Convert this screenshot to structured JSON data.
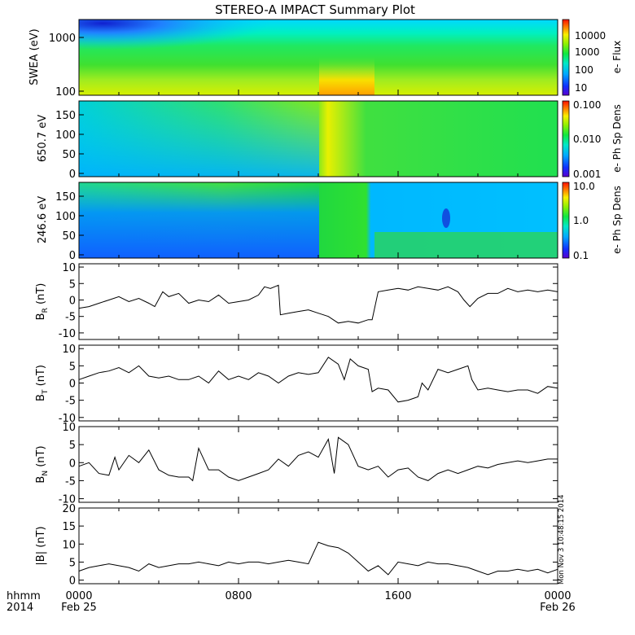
{
  "title": "STEREO-A IMPACT Summary Plot",
  "stamp": "Mon Nov 3 10:48:15 2014",
  "time_axis": {
    "row_label_1": "hhmm",
    "row_label_2": "2014",
    "ticks": [
      {
        "hhmm": "0000",
        "date": "Feb 25",
        "hours": 0
      },
      {
        "hhmm": "0800",
        "date": "",
        "hours": 8
      },
      {
        "hhmm": "1600",
        "date": "",
        "hours": 16
      },
      {
        "hhmm": "0000",
        "date": "Feb 26",
        "hours": 24
      }
    ]
  },
  "spectrogram_panels": [
    {
      "id": "swea",
      "ylabel": "SWEA (eV)",
      "yticks": [
        "1000",
        "100"
      ],
      "colorbar_label": "e- Flux",
      "colorbar_ticks": [
        "10000",
        "1000",
        "100",
        "10"
      ]
    },
    {
      "id": "pad650",
      "ylabel": "650.7 eV",
      "yticks": [
        "150",
        "100",
        "50",
        "0"
      ],
      "colorbar_label": "e- Ph Sp Dens",
      "colorbar_ticks": [
        "0.100",
        "0.010",
        "0.001"
      ]
    },
    {
      "id": "pad246",
      "ylabel": "246.6 eV",
      "yticks": [
        "150",
        "100",
        "50",
        "0"
      ],
      "colorbar_label": "e- Ph Sp Dens",
      "colorbar_ticks": [
        "10.0",
        "1.0",
        "0.1"
      ]
    }
  ],
  "chart_data": [
    {
      "type": "line",
      "id": "br",
      "ylabel_main": "B",
      "ylabel_sub": "R",
      "ylabel_unit": " (nT)",
      "ylim": [
        -12,
        11
      ],
      "yticks": [
        10,
        5,
        0,
        -5,
        -10
      ],
      "x_units": "hours since 2014-02-25 00:00",
      "xlim": [
        0,
        24
      ],
      "x": [
        0,
        0.5,
        1,
        1.5,
        2,
        2.5,
        3,
        3.5,
        3.8,
        4.2,
        4.5,
        5,
        5.5,
        6,
        6.5,
        7,
        7.5,
        8,
        8.5,
        9,
        9.3,
        9.6,
        10,
        10.1,
        10.5,
        11,
        11.5,
        12,
        12.5,
        13,
        13.5,
        14,
        14.5,
        14.7,
        15,
        15.5,
        16,
        16.5,
        17,
        17.5,
        18,
        18.5,
        19,
        19.3,
        19.6,
        20,
        20.5,
        21,
        21.5,
        22,
        22.5,
        23,
        23.5,
        24
      ],
      "y": [
        -2.5,
        -2,
        -1,
        0,
        1,
        -0.5,
        0.5,
        -1,
        -2,
        2.5,
        1,
        2,
        -1,
        0,
        -0.5,
        1.5,
        -1,
        -0.5,
        0,
        1.5,
        4,
        3.5,
        4.5,
        -4.5,
        -4,
        -3.5,
        -3,
        -4,
        -5,
        -7,
        -6.5,
        -7,
        -6,
        -6,
        2.5,
        3,
        3.5,
        3,
        4,
        3.5,
        3,
        4,
        2.5,
        0,
        -2,
        0.5,
        2,
        2,
        3.5,
        2.5,
        3,
        2.5,
        3,
        2.5
      ]
    },
    {
      "type": "line",
      "id": "bt",
      "ylabel_main": "B",
      "ylabel_sub": "T",
      "ylabel_unit": " (nT)",
      "ylim": [
        -11,
        11
      ],
      "yticks": [
        10,
        5,
        0,
        -5,
        -10
      ],
      "x_units": "hours since 2014-02-25 00:00",
      "xlim": [
        0,
        24
      ],
      "x": [
        0,
        0.5,
        1,
        1.5,
        2,
        2.5,
        3,
        3.5,
        4,
        4.5,
        5,
        5.5,
        6,
        6.5,
        7,
        7.5,
        8,
        8.5,
        9,
        9.5,
        10,
        10.5,
        11,
        11.5,
        12,
        12.5,
        13,
        13.3,
        13.6,
        14,
        14.5,
        14.7,
        15,
        15.5,
        16,
        16.5,
        17,
        17.2,
        17.5,
        18,
        18.5,
        19,
        19.5,
        19.7,
        20,
        20.5,
        21,
        21.5,
        22,
        22.5,
        23,
        23.5,
        24
      ],
      "y": [
        1,
        2,
        3,
        3.5,
        4.5,
        3,
        5,
        2,
        1.5,
        2,
        1,
        1,
        2,
        0,
        3.5,
        1,
        2,
        1,
        3,
        2,
        0,
        2,
        3,
        2.5,
        3,
        7.5,
        5.5,
        1,
        7,
        5,
        4,
        -2.5,
        -1.5,
        -2,
        -5.5,
        -5,
        -4,
        0,
        -2,
        4,
        3,
        4,
        5,
        1,
        -2,
        -1.5,
        -2,
        -2.5,
        -2,
        -2,
        -3,
        -1,
        -1.5
      ]
    },
    {
      "type": "line",
      "id": "bn",
      "ylabel_main": "B",
      "ylabel_sub": "N",
      "ylabel_unit": " (nT)",
      "ylim": [
        -11,
        10
      ],
      "yticks": [
        10,
        5,
        0,
        -5,
        -10
      ],
      "x_units": "hours since 2014-02-25 00:00",
      "xlim": [
        0,
        24
      ],
      "x": [
        0,
        0.5,
        1,
        1.5,
        1.8,
        2,
        2.5,
        3,
        3.5,
        4,
        4.5,
        5,
        5.5,
        5.7,
        6,
        6.5,
        7,
        7.5,
        8,
        8.5,
        9,
        9.5,
        10,
        10.5,
        11,
        11.5,
        12,
        12.5,
        12.8,
        13,
        13.5,
        14,
        14.5,
        15,
        15.5,
        16,
        16.5,
        17,
        17.5,
        18,
        18.5,
        19,
        19.5,
        20,
        20.5,
        21,
        21.5,
        22,
        22.5,
        23,
        23.5,
        24
      ],
      "y": [
        -1,
        0,
        -3,
        -3.5,
        1.5,
        -2,
        2,
        0,
        3.5,
        -2,
        -3.5,
        -4,
        -4,
        -5,
        4,
        -2,
        -2,
        -4,
        -5,
        -4,
        -3,
        -2,
        1,
        -1,
        2,
        3,
        1.5,
        6.5,
        -3,
        7,
        5,
        -1,
        -2,
        -1,
        -4,
        -2,
        -1.5,
        -4,
        -5,
        -3,
        -2,
        -3,
        -2,
        -1,
        -1.5,
        -0.5,
        0,
        0.5,
        0,
        0.5,
        1,
        1
      ]
    },
    {
      "type": "line",
      "id": "bmag",
      "ylabel_main": "|B|",
      "ylabel_sub": "",
      "ylabel_unit": " (nT)",
      "ylim": [
        -1,
        20
      ],
      "yticks": [
        20,
        15,
        10,
        5,
        0
      ],
      "x_units": "hours since 2014-02-25 00:00",
      "xlim": [
        0,
        24
      ],
      "x": [
        0,
        0.5,
        1,
        1.5,
        2,
        2.5,
        3,
        3.5,
        4,
        4.5,
        5,
        5.5,
        6,
        6.5,
        7,
        7.5,
        8,
        8.5,
        9,
        9.5,
        10,
        10.5,
        11,
        11.5,
        12,
        12.5,
        13,
        13.5,
        14,
        14.5,
        15,
        15.5,
        16,
        16.5,
        17,
        17.5,
        18,
        18.5,
        19,
        19.5,
        20,
        20.5,
        21,
        21.5,
        22,
        22.5,
        23,
        23.5,
        24
      ],
      "y": [
        2.5,
        3.5,
        4,
        4.5,
        4,
        3.5,
        2.5,
        4.5,
        3.5,
        4,
        4.5,
        4.5,
        5,
        4.5,
        4,
        5,
        4.5,
        5,
        5,
        4.5,
        5,
        5.5,
        5,
        4.5,
        10.5,
        9.5,
        9,
        7.5,
        5,
        2.5,
        4,
        1.5,
        5,
        4.5,
        4,
        5,
        4.5,
        4.5,
        4,
        3.5,
        2.5,
        1.5,
        2.5,
        2.5,
        3,
        2.5,
        3,
        2,
        3
      ]
    }
  ]
}
